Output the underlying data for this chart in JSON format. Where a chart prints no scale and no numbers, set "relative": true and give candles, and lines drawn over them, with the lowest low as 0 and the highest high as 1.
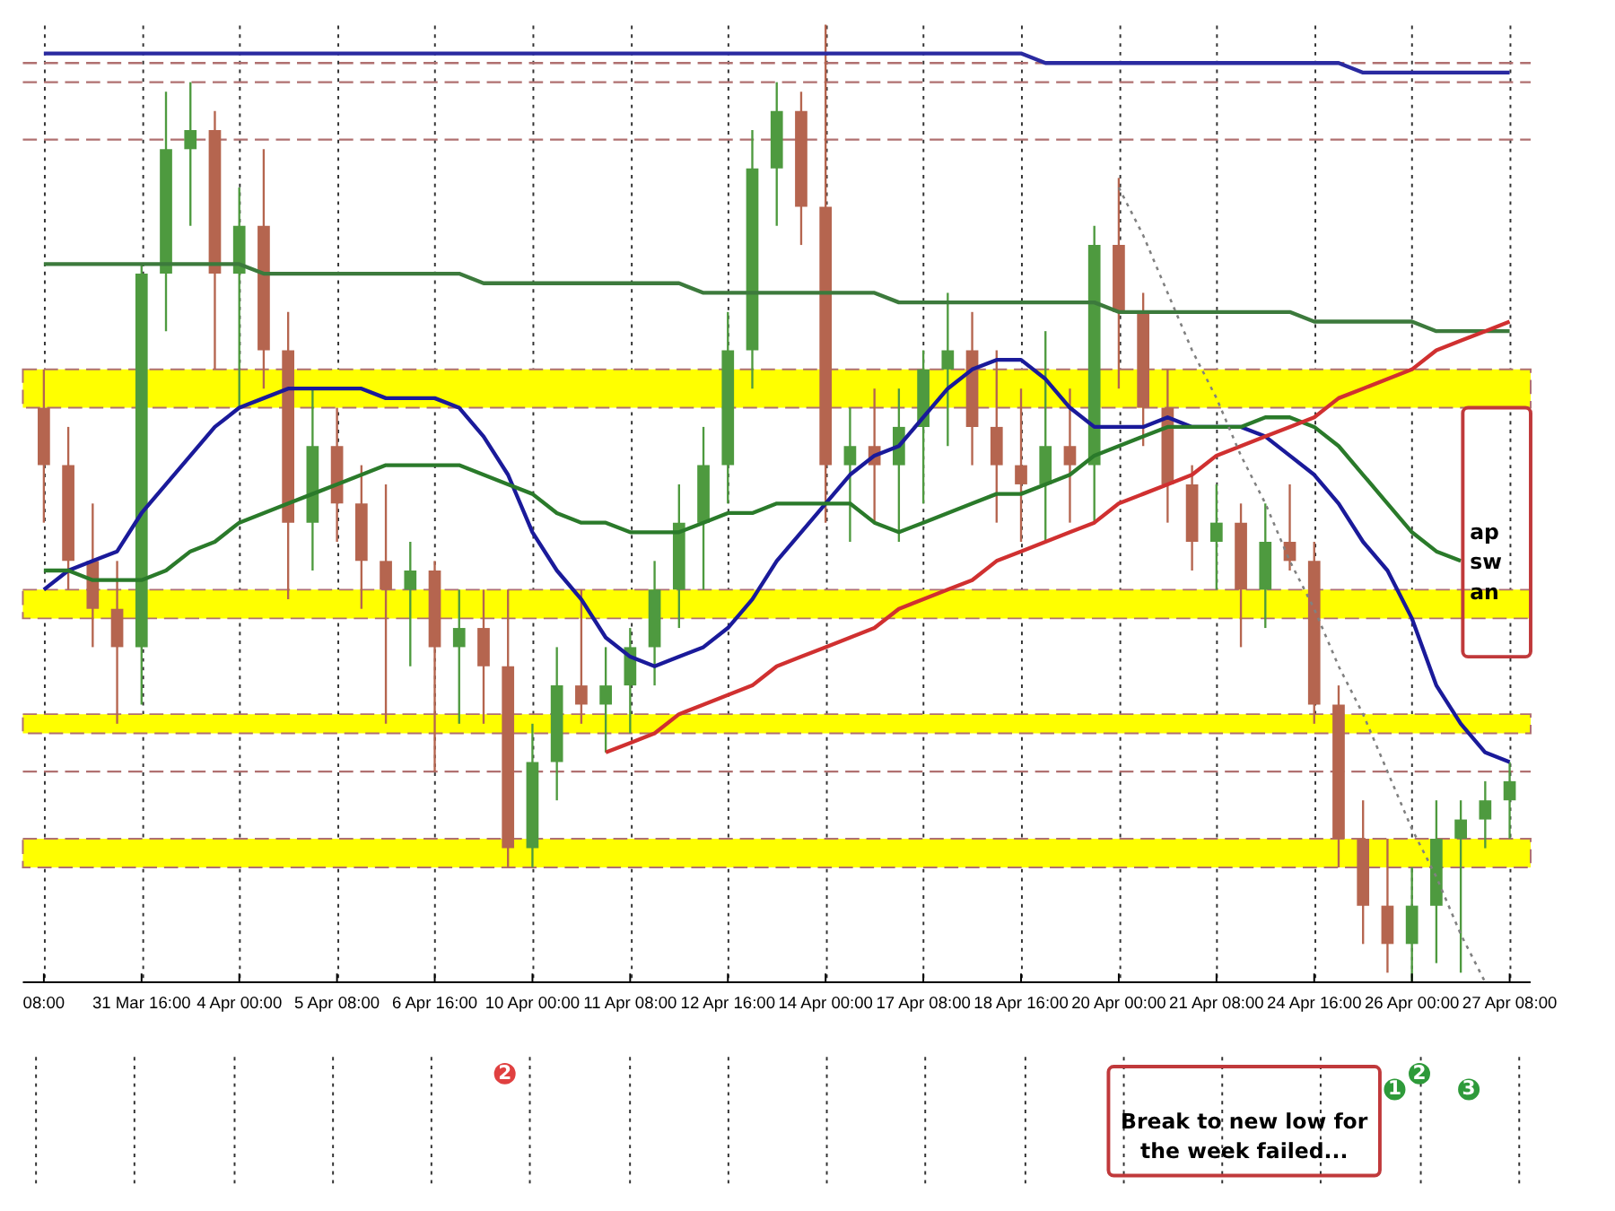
{
  "chart_data": {
    "type": "candlestick",
    "relative": true,
    "grid": "x",
    "categories": [
      "08:00",
      null,
      null,
      null,
      "31 Mar 16:00",
      null,
      null,
      null,
      "4 Apr 00:00",
      null,
      null,
      null,
      "5 Apr 08:00",
      null,
      null,
      null,
      "6 Apr 16:00",
      null,
      null,
      null,
      "10 Apr 00:00",
      null,
      null,
      null,
      "11 Apr 08:00",
      null,
      null,
      null,
      "12 Apr 16:00",
      null,
      null,
      null,
      "14 Apr 00:00",
      null,
      null,
      null,
      "17 Apr 08:00",
      null,
      null,
      null,
      "18 Apr 16:00",
      null,
      null,
      null,
      "20 Apr 00:00",
      null,
      null,
      null,
      "21 Apr 08:00",
      null,
      null,
      null,
      "24 Apr 16:00",
      null,
      null,
      null,
      "26 Apr 00:00",
      null,
      null,
      null,
      "27 Apr 08:00"
    ],
    "ohlc": [
      [
        0.6,
        0.64,
        0.48,
        0.54
      ],
      [
        0.54,
        0.58,
        0.41,
        0.44
      ],
      [
        0.44,
        0.5,
        0.35,
        0.39
      ],
      [
        0.39,
        0.44,
        0.27,
        0.35
      ],
      [
        0.35,
        0.75,
        0.29,
        0.74
      ],
      [
        0.74,
        0.93,
        0.68,
        0.87
      ],
      [
        0.87,
        0.94,
        0.79,
        0.89
      ],
      [
        0.89,
        0.91,
        0.64,
        0.74
      ],
      [
        0.74,
        0.83,
        0.6,
        0.79
      ],
      [
        0.79,
        0.87,
        0.62,
        0.66
      ],
      [
        0.66,
        0.7,
        0.4,
        0.48
      ],
      [
        0.48,
        0.62,
        0.43,
        0.56
      ],
      [
        0.56,
        0.6,
        0.46,
        0.5
      ],
      [
        0.5,
        0.54,
        0.39,
        0.44
      ],
      [
        0.44,
        0.52,
        0.27,
        0.41
      ],
      [
        0.41,
        0.46,
        0.33,
        0.43
      ],
      [
        0.43,
        0.44,
        0.22,
        0.35
      ],
      [
        0.35,
        0.41,
        0.27,
        0.37
      ],
      [
        0.37,
        0.41,
        0.27,
        0.33
      ],
      [
        0.33,
        0.41,
        0.12,
        0.14
      ],
      [
        0.14,
        0.27,
        0.12,
        0.23
      ],
      [
        0.23,
        0.35,
        0.19,
        0.31
      ],
      [
        0.31,
        0.41,
        0.27,
        0.29
      ],
      [
        0.29,
        0.35,
        0.24,
        0.31
      ],
      [
        0.31,
        0.37,
        0.26,
        0.35
      ],
      [
        0.35,
        0.44,
        0.31,
        0.41
      ],
      [
        0.41,
        0.52,
        0.37,
        0.48
      ],
      [
        0.48,
        0.58,
        0.41,
        0.54
      ],
      [
        0.54,
        0.7,
        0.5,
        0.66
      ],
      [
        0.66,
        0.89,
        0.62,
        0.85
      ],
      [
        0.85,
        0.94,
        0.79,
        0.91
      ],
      [
        0.91,
        0.93,
        0.77,
        0.81
      ],
      [
        0.81,
        1.0,
        0.48,
        0.54
      ],
      [
        0.54,
        0.6,
        0.46,
        0.56
      ],
      [
        0.56,
        0.62,
        0.48,
        0.54
      ],
      [
        0.54,
        0.62,
        0.46,
        0.58
      ],
      [
        0.58,
        0.66,
        0.5,
        0.64
      ],
      [
        0.64,
        0.72,
        0.56,
        0.66
      ],
      [
        0.66,
        0.7,
        0.54,
        0.58
      ],
      [
        0.58,
        0.66,
        0.48,
        0.54
      ],
      [
        0.54,
        0.62,
        0.46,
        0.52
      ],
      [
        0.52,
        0.68,
        0.46,
        0.56
      ],
      [
        0.56,
        0.62,
        0.48,
        0.54
      ],
      [
        0.54,
        0.79,
        0.48,
        0.77
      ],
      [
        0.77,
        0.84,
        0.62,
        0.7
      ],
      [
        0.7,
        0.72,
        0.56,
        0.6
      ],
      [
        0.6,
        0.64,
        0.48,
        0.52
      ],
      [
        0.52,
        0.54,
        0.43,
        0.46
      ],
      [
        0.46,
        0.52,
        0.41,
        0.48
      ],
      [
        0.48,
        0.5,
        0.35,
        0.41
      ],
      [
        0.41,
        0.5,
        0.37,
        0.46
      ],
      [
        0.46,
        0.52,
        0.43,
        0.44
      ],
      [
        0.44,
        0.46,
        0.27,
        0.29
      ],
      [
        0.29,
        0.31,
        0.12,
        0.15
      ],
      [
        0.15,
        0.19,
        0.04,
        0.08
      ],
      [
        0.08,
        0.15,
        0.01,
        0.04
      ],
      [
        0.04,
        0.12,
        0.0,
        0.08
      ],
      [
        0.08,
        0.19,
        0.02,
        0.15
      ],
      [
        0.15,
        0.19,
        0.01,
        0.17
      ],
      [
        0.17,
        0.21,
        0.14,
        0.19
      ],
      [
        0.19,
        0.23,
        0.15,
        0.21
      ]
    ],
    "colors": [
      "#b5654f",
      "#b5654f",
      "#b5654f",
      "#b5654f",
      "#4e9a3f",
      "#4e9a3f",
      "#4e9a3f",
      "#b5654f",
      "#4e9a3f",
      "#b5654f",
      "#b5654f",
      "#4e9a3f",
      "#b5654f",
      "#b5654f",
      "#b5654f",
      "#4e9a3f",
      "#b5654f",
      "#4e9a3f",
      "#b5654f",
      "#b5654f",
      "#4e9a3f",
      "#4e9a3f",
      "#b5654f",
      "#4e9a3f",
      "#4e9a3f",
      "#4e9a3f",
      "#4e9a3f",
      "#4e9a3f",
      "#4e9a3f",
      "#4e9a3f",
      "#4e9a3f",
      "#b5654f",
      "#b5654f",
      "#4e9a3f",
      "#b5654f",
      "#4e9a3f",
      "#4e9a3f",
      "#4e9a3f",
      "#b5654f",
      "#b5654f",
      "#b5654f",
      "#4e9a3f",
      "#b5654f",
      "#4e9a3f",
      "#b5654f",
      "#b5654f",
      "#b5654f",
      "#b5654f",
      "#4e9a3f",
      "#b5654f",
      "#4e9a3f",
      "#b5654f",
      "#b5654f",
      "#b5654f",
      "#b5654f",
      "#b5654f",
      "#4e9a3f",
      "#4e9a3f",
      "#4e9a3f",
      "#4e9a3f",
      "#4e9a3f"
    ],
    "series": [
      {
        "type": "line",
        "color": "#2a2aa0",
        "values": [
          0.97,
          0.97,
          0.97,
          0.97,
          0.97,
          0.97,
          0.97,
          0.97,
          0.97,
          0.97,
          0.97,
          0.97,
          0.97,
          0.97,
          0.97,
          0.97,
          0.97,
          0.97,
          0.97,
          0.97,
          0.97,
          0.97,
          0.97,
          0.97,
          0.97,
          0.97,
          0.97,
          0.97,
          0.97,
          0.97,
          0.97,
          0.97,
          0.97,
          0.97,
          0.97,
          0.97,
          0.97,
          0.97,
          0.97,
          0.97,
          0.97,
          0.96,
          0.96,
          0.96,
          0.96,
          0.96,
          0.96,
          0.96,
          0.96,
          0.96,
          0.96,
          0.96,
          0.96,
          0.96,
          0.95,
          0.95,
          0.95,
          0.95,
          0.95,
          0.95,
          0.95
        ]
      },
      {
        "type": "line",
        "color": "#3c7a3c",
        "values": [
          0.75,
          0.75,
          0.75,
          0.75,
          0.75,
          0.75,
          0.75,
          0.75,
          0.75,
          0.74,
          0.74,
          0.74,
          0.74,
          0.74,
          0.74,
          0.74,
          0.74,
          0.74,
          0.73,
          0.73,
          0.73,
          0.73,
          0.73,
          0.73,
          0.73,
          0.73,
          0.73,
          0.72,
          0.72,
          0.72,
          0.72,
          0.72,
          0.72,
          0.72,
          0.72,
          0.71,
          0.71,
          0.71,
          0.71,
          0.71,
          0.71,
          0.71,
          0.71,
          0.71,
          0.7,
          0.7,
          0.7,
          0.7,
          0.7,
          0.7,
          0.7,
          0.7,
          0.69,
          0.69,
          0.69,
          0.69,
          0.69,
          0.68,
          0.68,
          0.68,
          0.68
        ]
      },
      {
        "type": "line",
        "color": "#1a1a9a",
        "values": [
          0.41,
          0.43,
          0.44,
          0.45,
          0.49,
          0.52,
          0.55,
          0.58,
          0.6,
          0.61,
          0.62,
          0.62,
          0.62,
          0.62,
          0.61,
          0.61,
          0.61,
          0.6,
          0.57,
          0.53,
          0.47,
          0.43,
          0.4,
          0.36,
          0.34,
          0.33,
          0.34,
          0.35,
          0.37,
          0.4,
          0.44,
          0.47,
          0.5,
          0.53,
          0.55,
          0.56,
          0.59,
          0.62,
          0.64,
          0.65,
          0.65,
          0.63,
          0.6,
          0.58,
          0.58,
          0.58,
          0.59,
          0.58,
          0.58,
          0.58,
          0.57,
          0.55,
          0.53,
          0.5,
          0.46,
          0.43,
          0.38,
          0.31,
          0.27,
          0.24,
          0.23
        ]
      },
      {
        "type": "line",
        "color": "#2a7a2a",
        "values": [
          0.43,
          0.43,
          0.42,
          0.42,
          0.42,
          0.43,
          0.45,
          0.46,
          0.48,
          0.49,
          0.5,
          0.51,
          0.52,
          0.53,
          0.54,
          0.54,
          0.54,
          0.54,
          0.53,
          0.52,
          0.51,
          0.49,
          0.48,
          0.48,
          0.47,
          0.47,
          0.47,
          0.48,
          0.49,
          0.49,
          0.5,
          0.5,
          0.5,
          0.5,
          0.48,
          0.47,
          0.48,
          0.49,
          0.5,
          0.51,
          0.51,
          0.52,
          0.53,
          0.55,
          0.56,
          0.57,
          0.58,
          0.58,
          0.58,
          0.58,
          0.59,
          0.59,
          0.58,
          0.56,
          0.53,
          0.5,
          0.47,
          0.45,
          0.44,
          null,
          null
        ]
      },
      {
        "type": "line",
        "color": "#d03030",
        "values": [
          null,
          null,
          null,
          null,
          null,
          null,
          null,
          null,
          null,
          null,
          null,
          null,
          null,
          null,
          null,
          null,
          null,
          null,
          null,
          null,
          null,
          null,
          null,
          0.24,
          0.25,
          0.26,
          0.28,
          0.29,
          0.3,
          0.31,
          0.33,
          0.34,
          0.35,
          0.36,
          0.37,
          0.39,
          0.4,
          0.41,
          0.42,
          0.44,
          0.45,
          0.46,
          0.47,
          0.48,
          0.5,
          0.51,
          0.52,
          0.53,
          0.55,
          0.56,
          0.57,
          0.58,
          0.59,
          0.61,
          0.62,
          0.63,
          0.64,
          0.66,
          0.67,
          0.68,
          0.69
        ]
      },
      {
        "type": "line",
        "color": "#808080",
        "line_style": "dotted",
        "values": [
          null,
          null,
          null,
          null,
          null,
          null,
          null,
          null,
          null,
          null,
          null,
          null,
          null,
          null,
          null,
          null,
          null,
          null,
          null,
          null,
          null,
          null,
          null,
          null,
          null,
          null,
          null,
          null,
          null,
          null,
          null,
          null,
          null,
          null,
          null,
          null,
          null,
          null,
          null,
          null,
          null,
          null,
          null,
          null,
          0.83,
          0.78,
          0.72,
          0.66,
          0.61,
          0.55,
          0.5,
          0.44,
          0.39,
          0.33,
          0.28,
          0.22,
          0.16,
          0.11,
          0.05,
          0.0,
          null
        ]
      }
    ],
    "bands": [
      {
        "axis": "y",
        "from": 0.6,
        "to": 0.64,
        "color": "#ffff00"
      },
      {
        "axis": "y",
        "from": 0.38,
        "to": 0.41,
        "color": "#ffff00"
      },
      {
        "axis": "y",
        "from": 0.26,
        "to": 0.28,
        "color": "#ffff00"
      },
      {
        "axis": "y",
        "from": 0.12,
        "to": 0.15,
        "color": "#ffff00"
      }
    ],
    "ref_lines": [
      {
        "axis": "y",
        "value": 0.96,
        "color": "#b07070",
        "line_style": "dashed"
      },
      {
        "axis": "y",
        "value": 0.94,
        "color": "#b07070",
        "line_style": "dashed"
      },
      {
        "axis": "y",
        "value": 0.88,
        "color": "#b07070",
        "line_style": "dashed"
      },
      {
        "axis": "y",
        "value": 0.22,
        "color": "#b07070",
        "line_style": "dashed"
      }
    ],
    "annotations": [
      "Break to new low for the week failed...",
      "ap sw an",
      "2",
      "1",
      "2",
      "3"
    ]
  }
}
